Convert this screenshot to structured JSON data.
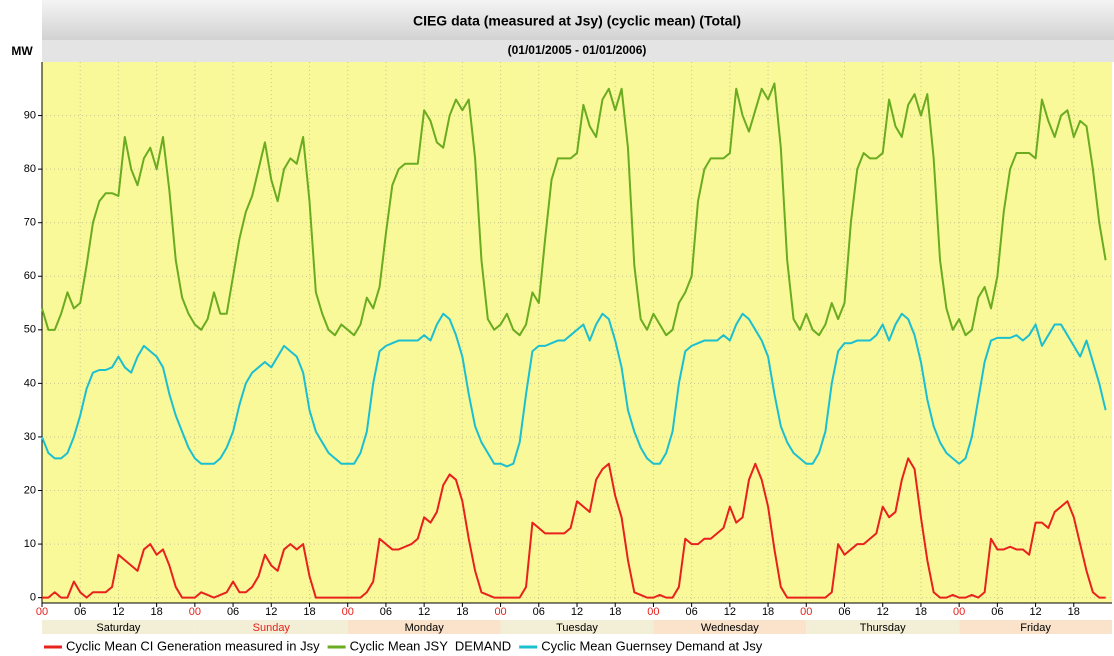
{
  "chart_data": {
    "type": "line",
    "title": "CIEG data (measured at Jsy) (cyclic mean) (Total)",
    "subtitle": "(01/01/2005 - 01/01/2006)",
    "y_label": "MW",
    "x": [
      0,
      1,
      2,
      3,
      4,
      5,
      6,
      7,
      8,
      9,
      10,
      11,
      12,
      13,
      14,
      15,
      16,
      17,
      18,
      19,
      20,
      21,
      22,
      23,
      24,
      25,
      26,
      27,
      28,
      29,
      30,
      31,
      32,
      33,
      34,
      35,
      36,
      37,
      38,
      39,
      40,
      41,
      42,
      43,
      44,
      45,
      46,
      47,
      48,
      49,
      50,
      51,
      52,
      53,
      54,
      55,
      56,
      57,
      58,
      59,
      60,
      61,
      62,
      63,
      64,
      65,
      66,
      67,
      68,
      69,
      70,
      71,
      72,
      73,
      74,
      75,
      76,
      77,
      78,
      79,
      80,
      81,
      82,
      83,
      84,
      85,
      86,
      87,
      88,
      89,
      90,
      91,
      92,
      93,
      94,
      95,
      96,
      97,
      98,
      99,
      100,
      101,
      102,
      103,
      104,
      105,
      106,
      107,
      108,
      109,
      110,
      111,
      112,
      113,
      114,
      115,
      116,
      117,
      118,
      119,
      120,
      121,
      122,
      123,
      124,
      125,
      126,
      127,
      128,
      129,
      130,
      131,
      132,
      133,
      134,
      135,
      136,
      137,
      138,
      139,
      140,
      141,
      142,
      143,
      144,
      145,
      146,
      147,
      148,
      149,
      150,
      151,
      152,
      153,
      154,
      155,
      156,
      157,
      158,
      159,
      160,
      161,
      162,
      163,
      164,
      165,
      166,
      167
    ],
    "xlim": [
      0,
      168
    ],
    "xticks": [
      {
        "value": 0,
        "label": "00"
      },
      {
        "value": 6,
        "label": "06"
      },
      {
        "value": 12,
        "label": "12"
      },
      {
        "value": 18,
        "label": "18"
      },
      {
        "value": 24,
        "label": "00"
      },
      {
        "value": 30,
        "label": "06"
      },
      {
        "value": 36,
        "label": "12"
      },
      {
        "value": 42,
        "label": "18"
      },
      {
        "value": 48,
        "label": "00"
      },
      {
        "value": 54,
        "label": "06"
      },
      {
        "value": 60,
        "label": "12"
      },
      {
        "value": 66,
        "label": "18"
      },
      {
        "value": 72,
        "label": "00"
      },
      {
        "value": 78,
        "label": "06"
      },
      {
        "value": 84,
        "label": "12"
      },
      {
        "value": 90,
        "label": "18"
      },
      {
        "value": 96,
        "label": "00"
      },
      {
        "value": 102,
        "label": "06"
      },
      {
        "value": 108,
        "label": "12"
      },
      {
        "value": 114,
        "label": "18"
      },
      {
        "value": 120,
        "label": "00"
      },
      {
        "value": 126,
        "label": "06"
      },
      {
        "value": 132,
        "label": "12"
      },
      {
        "value": 138,
        "label": "18"
      },
      {
        "value": 144,
        "label": "00"
      },
      {
        "value": 150,
        "label": "06"
      },
      {
        "value": 156,
        "label": "12"
      },
      {
        "value": 162,
        "label": "18"
      }
    ],
    "midnight_tick_color": "#e8211d",
    "days": [
      "Saturday",
      "Sunday",
      "Monday",
      "Tuesday",
      "Wednesday",
      "Thursday",
      "Friday"
    ],
    "day_text_colors": [
      "#000000",
      "#e8211d",
      "#000000",
      "#000000",
      "#000000",
      "#000000",
      "#000000"
    ],
    "day_band_colors": [
      "#f3efd6",
      "#f3efd6",
      "#fbe3cb",
      "#f3efd6",
      "#fbe3cb",
      "#f3efd6",
      "#fbe3cb"
    ],
    "ylim": [
      -1,
      100
    ],
    "yticks": [
      0,
      10,
      20,
      30,
      40,
      50,
      60,
      70,
      80,
      90
    ],
    "grid": true,
    "background": "#f9f99a",
    "series": [
      {
        "name": "Cyclic Mean CI Generation measured in Jsy",
        "color": "#e8211d",
        "values": [
          0,
          0,
          1,
          0,
          0,
          3,
          1,
          0,
          1,
          1,
          1,
          2,
          8,
          7,
          6,
          5,
          9,
          10,
          8,
          9,
          6,
          2,
          0,
          0,
          0,
          1,
          0.5,
          0,
          0.5,
          1,
          3,
          1,
          1,
          2,
          4,
          8,
          6,
          5,
          9,
          10,
          9,
          10,
          4,
          0,
          0,
          0,
          0,
          0,
          0,
          0,
          0,
          1,
          3,
          11,
          10,
          9,
          9,
          9.5,
          10,
          11,
          15,
          14,
          16,
          21,
          23,
          22,
          18,
          11,
          5,
          1,
          0.5,
          0,
          0,
          0,
          0,
          0,
          2,
          14,
          13,
          12,
          12,
          12,
          12,
          13,
          18,
          17,
          16,
          22,
          24,
          25,
          19,
          15,
          7,
          1,
          0.5,
          0,
          0,
          0.5,
          0,
          0,
          2,
          11,
          10,
          10,
          11,
          11,
          12,
          13,
          17,
          14,
          15,
          22,
          25,
          22,
          17,
          9,
          2,
          0,
          0,
          0,
          0,
          0,
          0,
          0,
          1,
          10,
          8,
          9,
          10,
          10,
          11,
          12,
          17,
          15,
          16,
          22,
          26,
          24,
          15,
          7,
          1,
          0,
          0,
          0.5,
          0,
          0,
          0.5,
          0,
          1,
          11,
          9,
          9,
          9.5,
          9,
          9,
          8,
          14,
          14,
          13,
          16,
          17,
          18,
          15,
          10,
          5,
          1,
          0,
          0
        ]
      },
      {
        "name": "Cyclic Mean JSY  DEMAND",
        "color": "#6aab1f",
        "values": [
          54,
          50,
          50,
          53,
          57,
          54,
          55,
          62,
          70,
          74,
          75.5,
          75.5,
          75,
          86,
          80,
          77,
          82,
          84,
          80,
          86,
          76,
          63,
          56,
          53,
          51,
          50,
          52,
          57,
          53,
          53,
          60,
          67,
          72,
          75,
          80,
          85,
          78,
          74,
          80,
          82,
          81,
          86,
          74,
          57,
          53,
          50,
          49,
          51,
          50,
          49,
          51,
          56,
          54,
          58,
          68,
          77,
          80,
          81,
          81,
          81,
          91,
          89,
          85,
          84,
          90,
          93,
          91,
          93,
          82,
          63,
          52,
          50,
          51,
          53,
          50,
          49,
          51,
          57,
          55,
          67,
          78,
          82,
          82,
          82,
          83,
          92,
          88,
          86,
          93,
          95,
          91,
          95,
          84,
          62,
          52,
          50,
          53,
          51,
          49,
          50,
          55,
          57,
          60,
          74,
          80,
          82,
          82,
          82,
          83,
          95,
          90,
          87,
          91,
          95,
          93,
          96,
          84,
          63,
          52,
          50,
          53,
          50,
          49,
          51,
          55,
          52,
          55,
          70,
          80,
          83,
          82,
          82,
          83,
          93,
          88,
          86,
          92,
          94,
          90,
          94,
          82,
          63,
          54,
          50,
          52,
          49,
          50,
          56,
          58,
          54,
          60,
          72,
          80,
          83,
          83,
          83,
          82,
          93,
          89,
          86,
          90,
          91,
          86,
          89,
          88,
          80,
          70,
          63
        ]
      },
      {
        "name": "Cyclic Mean Guernsey Demand at Jsy",
        "color": "#1cbfd0",
        "values": [
          30,
          27,
          26,
          26,
          27,
          30,
          34,
          39,
          42,
          42.5,
          42.5,
          43,
          45,
          43,
          42,
          45,
          47,
          46,
          45,
          43,
          38,
          34,
          31,
          28,
          26,
          25,
          25,
          25,
          26,
          28,
          31,
          36,
          40,
          42,
          43,
          44,
          43,
          45,
          47,
          46,
          45,
          42,
          35,
          31,
          29,
          27,
          26,
          25,
          25,
          25,
          27,
          31,
          40,
          46,
          47,
          47.5,
          48,
          48,
          48,
          48,
          49,
          48,
          51,
          53,
          52,
          49,
          45,
          38,
          32,
          29,
          27,
          25,
          25,
          24.5,
          25,
          29,
          38,
          46,
          47,
          47,
          47.5,
          48,
          48,
          49,
          50,
          51,
          48,
          51,
          53,
          52,
          48,
          43,
          35,
          31,
          28,
          26,
          25,
          25,
          27,
          31,
          40,
          46,
          47,
          47.5,
          48,
          48,
          48,
          49,
          48,
          51,
          53,
          52,
          50,
          48,
          45,
          38,
          32,
          29,
          27,
          26,
          25,
          25,
          27,
          31,
          40,
          46,
          47.5,
          47.5,
          48,
          48,
          48,
          49,
          51,
          48,
          51,
          53,
          52,
          49,
          44,
          37,
          32,
          29,
          27,
          26,
          25,
          26,
          30,
          37,
          44,
          48,
          48.5,
          48.5,
          48.5,
          49,
          48,
          49,
          51,
          47,
          49,
          51,
          51,
          49,
          47,
          45,
          48,
          44,
          40,
          35
        ]
      }
    ]
  }
}
